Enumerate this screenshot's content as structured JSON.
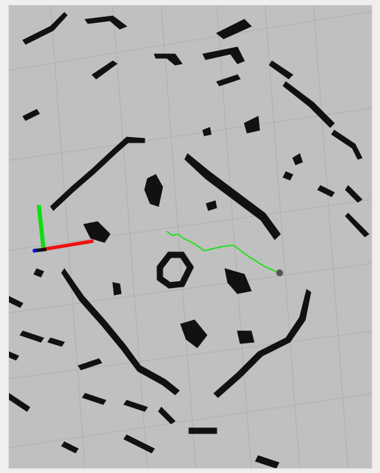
{
  "viewport": {
    "background": "#c0c0c0",
    "grid_color": "#aeaeae",
    "obstacle_color": "#111111",
    "path_color": "#22e022",
    "axis_x_color": "#ee1111",
    "axis_y_color": "#11dd11",
    "axis_z_color": "#1111ee",
    "robot_color": "#555555"
  }
}
